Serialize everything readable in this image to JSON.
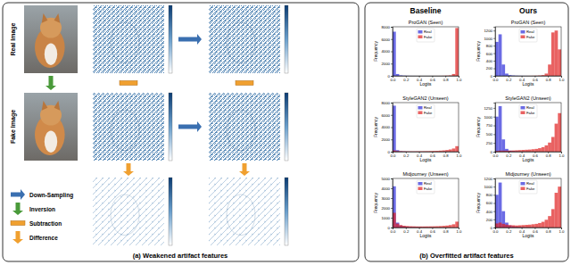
{
  "diagram": {
    "caption": "(a) Weakened artifact features",
    "rows": [
      {
        "label": "Real Image"
      },
      {
        "label": "Fake Image"
      }
    ],
    "key_items": [
      {
        "label": "Down-Sampling"
      },
      {
        "label": "Inversion"
      },
      {
        "label": "Subtraction"
      },
      {
        "label": "Difference"
      }
    ]
  },
  "panel_b": {
    "caption": "(b) Overfitted artifact features",
    "columns": [
      "Baseline",
      "Ours"
    ]
  },
  "chart_data": [
    {
      "type": "histogram",
      "title": "ProGAN (Seen)",
      "x_label": "Logits",
      "y_label": "Frequency",
      "bins": [
        0,
        0.05,
        0.1,
        0.15,
        0.2,
        0.25,
        0.3,
        0.35,
        0.4,
        0.45,
        0.5,
        0.55,
        0.6,
        0.65,
        0.7,
        0.75,
        0.8,
        0.85,
        0.9,
        0.95,
        1
      ],
      "series": [
        {
          "name": "Real",
          "color": "#2c2cd8",
          "values": [
            7200,
            300,
            80,
            40,
            20,
            10,
            8,
            5,
            4,
            3,
            2,
            2,
            1,
            1,
            1,
            1,
            0,
            0,
            0,
            0
          ]
        },
        {
          "name": "Fake",
          "color": "#e02020",
          "values": [
            0,
            0,
            0,
            0,
            1,
            1,
            1,
            1,
            2,
            2,
            3,
            4,
            5,
            8,
            10,
            20,
            40,
            80,
            300,
            7800
          ]
        }
      ],
      "xlim": [
        0,
        1
      ],
      "xticks": [
        {
          "value": 0,
          "label": "0.0"
        },
        0.2,
        0.4,
        0.6,
        0.8,
        {
          "value": 1,
          "label": "1.0"
        }
      ],
      "ylim": [
        0,
        8000
      ],
      "yticks": [
        0,
        2000,
        4000,
        6000,
        8000
      ],
      "legend": "upper center"
    },
    {
      "type": "histogram",
      "title": "ProGAN (Seen)",
      "x_label": "Logits",
      "y_label": "Frequency",
      "bins": [
        0,
        0.05,
        0.1,
        0.15,
        0.2,
        0.25,
        0.3,
        0.35,
        0.4,
        0.45,
        0.5,
        0.55,
        0.6,
        0.65,
        0.7,
        0.75,
        0.8,
        0.85,
        0.9,
        0.95,
        1
      ],
      "series": [
        {
          "name": "Real",
          "color": "#2c2cd8",
          "values": [
            900,
            1100,
            300,
            60,
            20,
            10,
            5,
            3,
            2,
            1,
            0,
            0,
            0,
            0,
            0,
            0,
            0,
            0,
            0,
            0
          ]
        },
        {
          "name": "Fake",
          "color": "#e02020",
          "values": [
            0,
            0,
            0,
            0,
            0,
            0,
            0,
            0,
            0,
            1,
            2,
            3,
            5,
            10,
            20,
            60,
            300,
            1150,
            1200,
            700
          ]
        }
      ],
      "xlim": [
        0,
        1
      ],
      "xticks": [
        {
          "value": 0,
          "label": "0.0"
        },
        0.2,
        0.4,
        0.6,
        0.8,
        {
          "value": 1,
          "label": "1.0"
        }
      ],
      "ylim": [
        0,
        1300
      ],
      "yticks": [
        0,
        200,
        400,
        600,
        800,
        1000,
        1200
      ],
      "legend": "upper center"
    },
    {
      "type": "histogram",
      "title": "StyleGAN2 (Unseen)",
      "x_label": "Logits",
      "y_label": "Frequency",
      "bins": [
        0,
        0.05,
        0.1,
        0.15,
        0.2,
        0.25,
        0.3,
        0.35,
        0.4,
        0.45,
        0.5,
        0.55,
        0.6,
        0.65,
        0.7,
        0.75,
        0.8,
        0.85,
        0.9,
        0.95,
        1
      ],
      "series": [
        {
          "name": "Real",
          "color": "#2c2cd8",
          "values": [
            7500,
            250,
            70,
            35,
            20,
            12,
            8,
            6,
            4,
            3,
            2,
            2,
            1,
            1,
            1,
            1,
            0,
            0,
            0,
            0
          ]
        },
        {
          "name": "Fake",
          "color": "#e02020",
          "values": [
            200,
            100,
            80,
            70,
            60,
            60,
            60,
            70,
            70,
            80,
            90,
            100,
            120,
            140,
            170,
            210,
            270,
            360,
            520,
            900
          ]
        }
      ],
      "xlim": [
        0,
        1
      ],
      "xticks": [
        {
          "value": 0,
          "label": "0.0"
        },
        0.2,
        0.4,
        0.6,
        0.8,
        {
          "value": 1,
          "label": "1.0"
        }
      ],
      "ylim": [
        0,
        8000
      ],
      "yticks": [
        0,
        2000,
        4000,
        6000,
        8000
      ],
      "legend": "upper center"
    },
    {
      "type": "histogram",
      "title": "StyleGAN2 (Unseen)",
      "x_label": "Logits",
      "y_label": "Frequency",
      "bins": [
        0,
        0.05,
        0.1,
        0.15,
        0.2,
        0.25,
        0.3,
        0.35,
        0.4,
        0.45,
        0.5,
        0.55,
        0.6,
        0.65,
        0.7,
        0.75,
        0.8,
        0.85,
        0.9,
        0.95,
        1
      ],
      "series": [
        {
          "name": "Real",
          "color": "#2c2cd8",
          "values": [
            1000,
            1300,
            350,
            80,
            30,
            15,
            8,
            5,
            3,
            2,
            2,
            1,
            1,
            1,
            1,
            0,
            0,
            0,
            0,
            0
          ]
        },
        {
          "name": "Fake",
          "color": "#e02020",
          "values": [
            20,
            30,
            30,
            30,
            30,
            35,
            40,
            45,
            50,
            55,
            60,
            70,
            80,
            100,
            130,
            180,
            260,
            420,
            800,
            1100
          ]
        }
      ],
      "xlim": [
        0,
        1
      ],
      "xticks": [
        {
          "value": 0,
          "label": "0.0"
        },
        0.2,
        0.4,
        0.6,
        0.8,
        {
          "value": 1,
          "label": "1.0"
        }
      ],
      "ylim": [
        0,
        1400
      ],
      "yticks": [
        0,
        250,
        500,
        750,
        1000,
        1250
      ],
      "legend": "upper center"
    },
    {
      "type": "histogram",
      "title": "Midjourney (Unseen)",
      "x_label": "Logits",
      "y_label": "Frequency",
      "bins": [
        0,
        0.05,
        0.1,
        0.15,
        0.2,
        0.25,
        0.3,
        0.35,
        0.4,
        0.45,
        0.5,
        0.55,
        0.6,
        0.65,
        0.7,
        0.75,
        0.8,
        0.85,
        0.9,
        0.95,
        1
      ],
      "series": [
        {
          "name": "Real",
          "color": "#2c2cd8",
          "values": [
            4200,
            500,
            200,
            120,
            80,
            60,
            50,
            40,
            30,
            25,
            20,
            18,
            15,
            12,
            10,
            8,
            6,
            5,
            4,
            3
          ]
        },
        {
          "name": "Fake",
          "color": "#e02020",
          "values": [
            1500,
            400,
            250,
            180,
            150,
            130,
            120,
            110,
            110,
            110,
            115,
            120,
            125,
            135,
            150,
            170,
            200,
            250,
            330,
            600
          ]
        }
      ],
      "xlim": [
        0,
        1
      ],
      "xticks": [
        {
          "value": 0,
          "label": "0.0"
        },
        0.2,
        0.4,
        0.6,
        0.8,
        {
          "value": 1,
          "label": "1.0"
        }
      ],
      "ylim": [
        0,
        5000
      ],
      "yticks": [
        0,
        1000,
        2000,
        3000,
        4000,
        5000
      ],
      "legend": "upper center"
    },
    {
      "type": "histogram",
      "title": "Midjourney (Unseen)",
      "x_label": "Logits",
      "y_label": "Frequency",
      "bins": [
        0,
        0.05,
        0.1,
        0.15,
        0.2,
        0.25,
        0.3,
        0.35,
        0.4,
        0.45,
        0.5,
        0.55,
        0.6,
        0.65,
        0.7,
        0.75,
        0.8,
        0.85,
        0.9,
        0.95,
        1
      ],
      "series": [
        {
          "name": "Real",
          "color": "#2c2cd8",
          "values": [
            800,
            1100,
            400,
            120,
            50,
            30,
            20,
            15,
            10,
            8,
            6,
            5,
            4,
            3,
            3,
            2,
            2,
            2,
            1,
            1
          ]
        },
        {
          "name": "Fake",
          "color": "#e02020",
          "values": [
            100,
            120,
            90,
            70,
            60,
            55,
            50,
            55,
            60,
            65,
            70,
            80,
            90,
            110,
            140,
            190,
            280,
            450,
            850,
            1000
          ]
        }
      ],
      "xlim": [
        0,
        1
      ],
      "xticks": [
        {
          "value": 0,
          "label": "0.0"
        },
        0.2,
        0.4,
        0.6,
        0.8,
        {
          "value": 1,
          "label": "1.0"
        }
      ],
      "ylim": [
        0,
        1200
      ],
      "yticks": [
        0,
        200,
        400,
        600,
        800,
        1000,
        1200
      ],
      "legend": "upper center"
    }
  ]
}
